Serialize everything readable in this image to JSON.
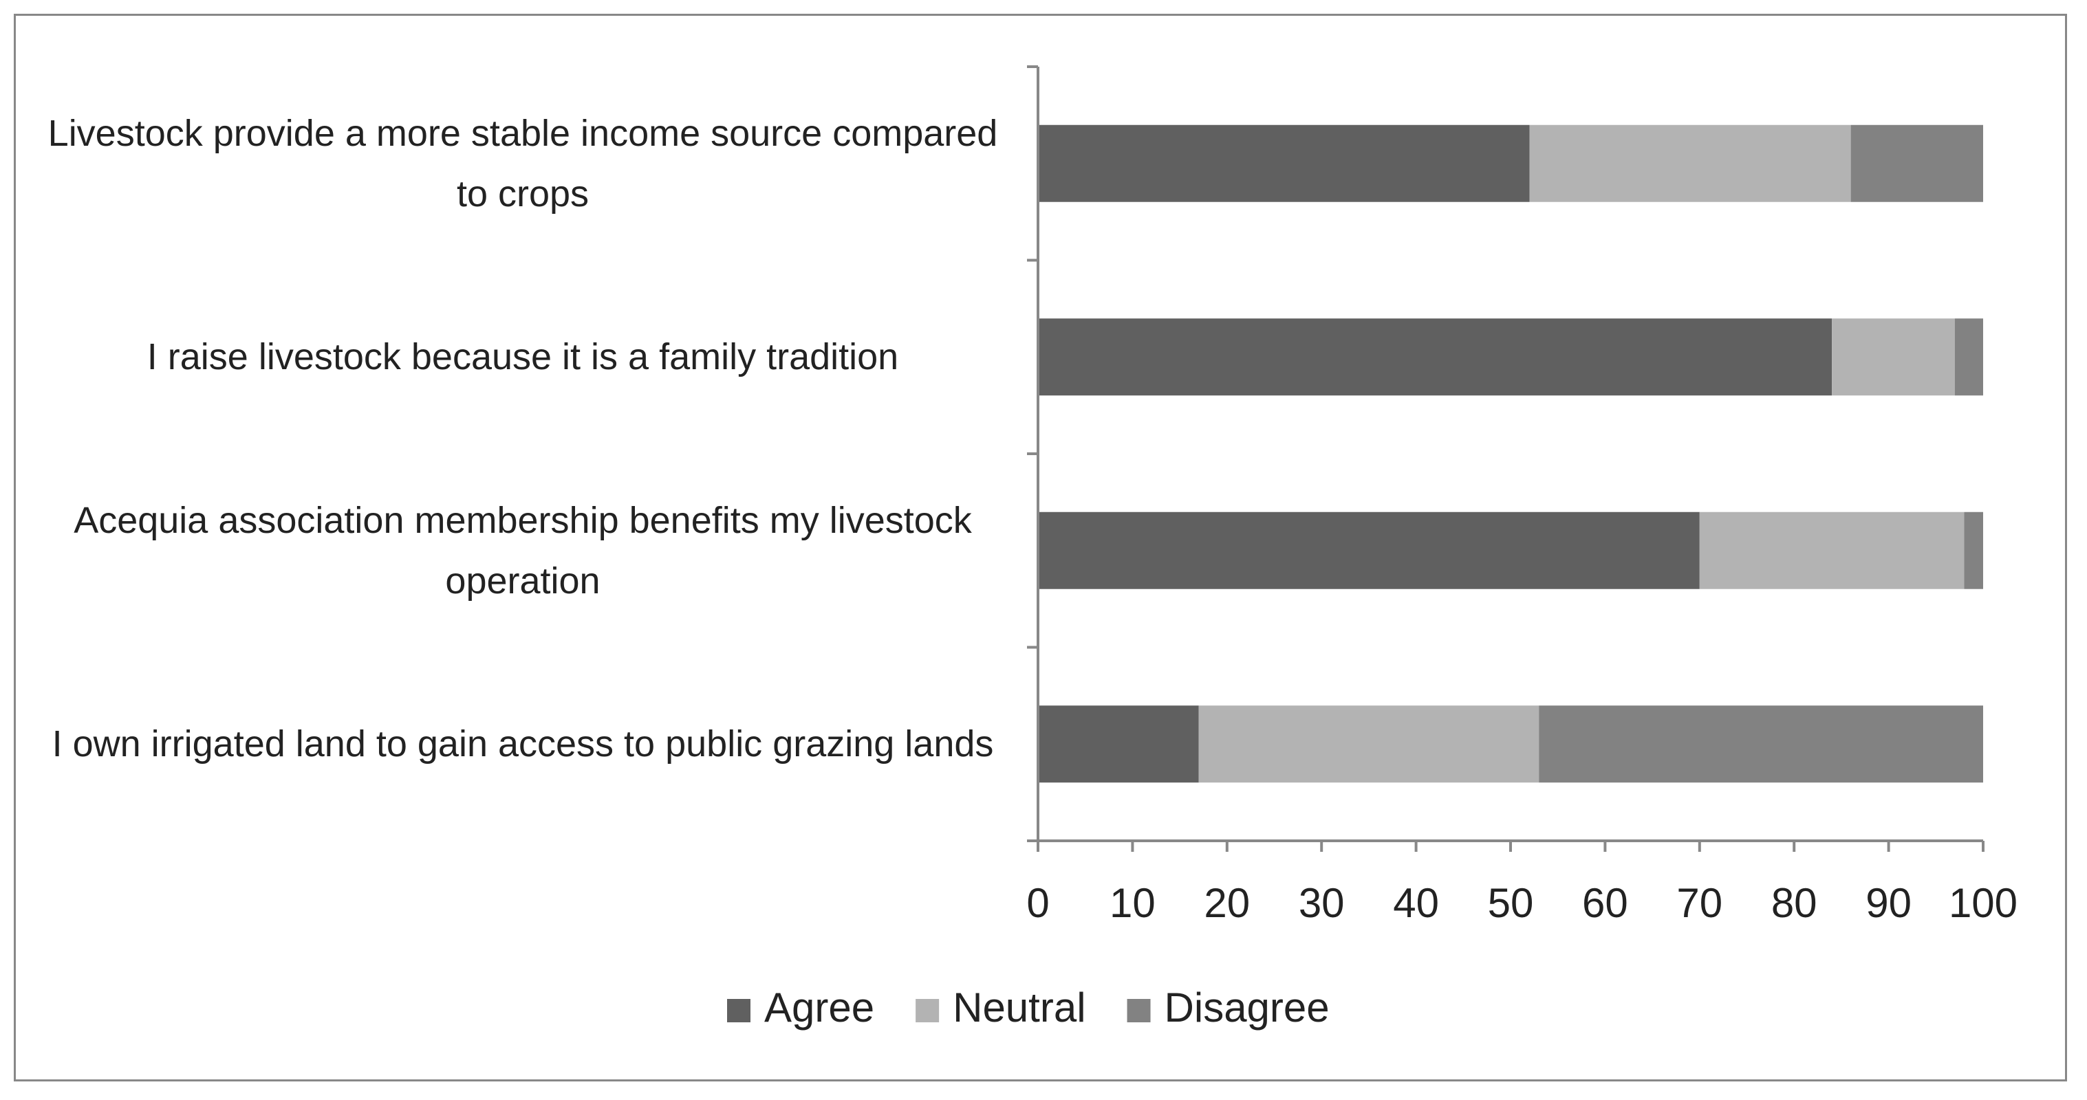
{
  "chart_data": {
    "type": "stacked-bar-horizontal",
    "categories": [
      "Livestock provide a more stable income source compared to crops",
      "I raise livestock because it is a family tradition",
      "Acequia association membership benefits my livestock operation",
      "I own irrigated land to gain access to public grazing lands"
    ],
    "series": [
      {
        "name": "Agree",
        "color": "#606060",
        "values": [
          52,
          84,
          70,
          17
        ]
      },
      {
        "name": "Neutral",
        "color": "#b3b3b3",
        "values": [
          34,
          13,
          28,
          36
        ]
      },
      {
        "name": "Disagree",
        "color": "#828282",
        "values": [
          14,
          3,
          2,
          47
        ]
      }
    ],
    "xlim": [
      0,
      100
    ],
    "xticks": [
      0,
      10,
      20,
      30,
      40,
      50,
      60,
      70,
      80,
      90,
      100
    ],
    "legend": "bottom"
  }
}
